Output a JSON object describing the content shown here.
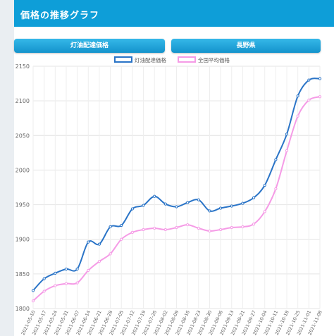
{
  "header": {
    "title": "価格の推移グラフ"
  },
  "tabs": {
    "product": "灯油配達価格",
    "region": "長野県"
  },
  "chart_data": {
    "type": "line",
    "x": [
      "2021-05-10",
      "2021-05-17",
      "2021-05-24",
      "2021-05-31",
      "2021-06-07",
      "2021-06-14",
      "2021-06-21",
      "2021-06-28",
      "2021-07-05",
      "2021-07-12",
      "2021-07-19",
      "2021-07-26",
      "2021-08-02",
      "2021-08-09",
      "2021-08-16",
      "2021-08-23",
      "2021-08-30",
      "2021-09-06",
      "2021-09-13",
      "2021-09-21",
      "2021-09-27",
      "2021-10-04",
      "2021-10-11",
      "2021-10-18",
      "2021-10-25",
      "2021-11-01",
      "2021-11-08"
    ],
    "series": [
      {
        "name": "灯油配達価格",
        "color": "#2a74c7",
        "values": [
          1826,
          1843,
          1851,
          1857,
          1857,
          1896,
          1893,
          1918,
          1920,
          1944,
          1949,
          1962,
          1951,
          1947,
          1953,
          1957,
          1941,
          1945,
          1948,
          1952,
          1960,
          1978,
          2015,
          2052,
          2107,
          2130,
          2132
        ]
      },
      {
        "name": "全国平均価格",
        "color": "#f59be6",
        "values": [
          1811,
          1825,
          1833,
          1836,
          1837,
          1855,
          1868,
          1879,
          1900,
          1910,
          1914,
          1916,
          1914,
          1917,
          1921,
          1916,
          1912,
          1914,
          1917,
          1918,
          1922,
          1940,
          1973,
          2028,
          2078,
          2101,
          2106
        ]
      }
    ],
    "ylim": [
      1800,
      2150
    ],
    "yticks": [
      1800,
      1850,
      1900,
      1950,
      2000,
      2050,
      2100,
      2150
    ],
    "grid": true,
    "legend": "top"
  }
}
